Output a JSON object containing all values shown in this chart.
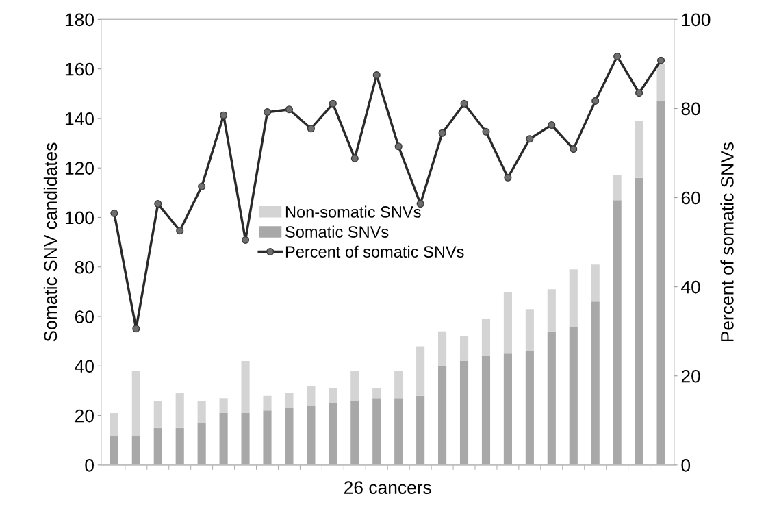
{
  "chart_data": {
    "type": "bar",
    "stacked": true,
    "xlabel": "26 cancers",
    "ylabel": "Somatic SNV candidates",
    "y2label": "Percent of somatic SNVs",
    "categories": [
      null,
      null,
      null,
      null,
      null,
      null,
      null,
      null,
      null,
      null,
      null,
      null,
      null,
      null,
      null,
      null,
      null,
      null,
      null,
      null,
      null,
      null,
      null,
      null,
      null,
      null
    ],
    "series": [
      {
        "name": "Somatic SNVs",
        "color": "#a8a8a8",
        "values": [
          12,
          12,
          15,
          15,
          17,
          21,
          21,
          22,
          23,
          24,
          25,
          26,
          27,
          27,
          28,
          40,
          42,
          44,
          45,
          46,
          54,
          56,
          66,
          107,
          116,
          147
        ]
      },
      {
        "name": "Non-somatic SNVs",
        "color": "#d4d4d4",
        "values": [
          9,
          26,
          11,
          14,
          9,
          6,
          21,
          6,
          6,
          8,
          6,
          12,
          4,
          11,
          20,
          14,
          10,
          15,
          25,
          17,
          17,
          23,
          15,
          10,
          23,
          15
        ]
      },
      {
        "name": "Percent of somatic SNVs",
        "type": "line",
        "axis": "y2",
        "color": "#2a2a2a",
        "marker": "circle",
        "values": [
          56.5,
          30.6,
          58.6,
          52.6,
          62.5,
          78.5,
          50.5,
          79.2,
          79.8,
          75.5,
          81.1,
          68.8,
          87.5,
          71.5,
          58.6,
          74.5,
          81.1,
          74.8,
          64.5,
          73.2,
          76.3,
          70.9,
          81.7,
          91.7,
          83.5,
          90.8
        ]
      }
    ],
    "ylim": [
      0,
      180
    ],
    "yticks": [
      0,
      20,
      40,
      60,
      80,
      100,
      120,
      140,
      160,
      180
    ],
    "y2lim": [
      0,
      100
    ],
    "y2ticks": [
      0,
      20,
      40,
      60,
      80,
      100
    ],
    "legend": "center",
    "grid": false
  }
}
